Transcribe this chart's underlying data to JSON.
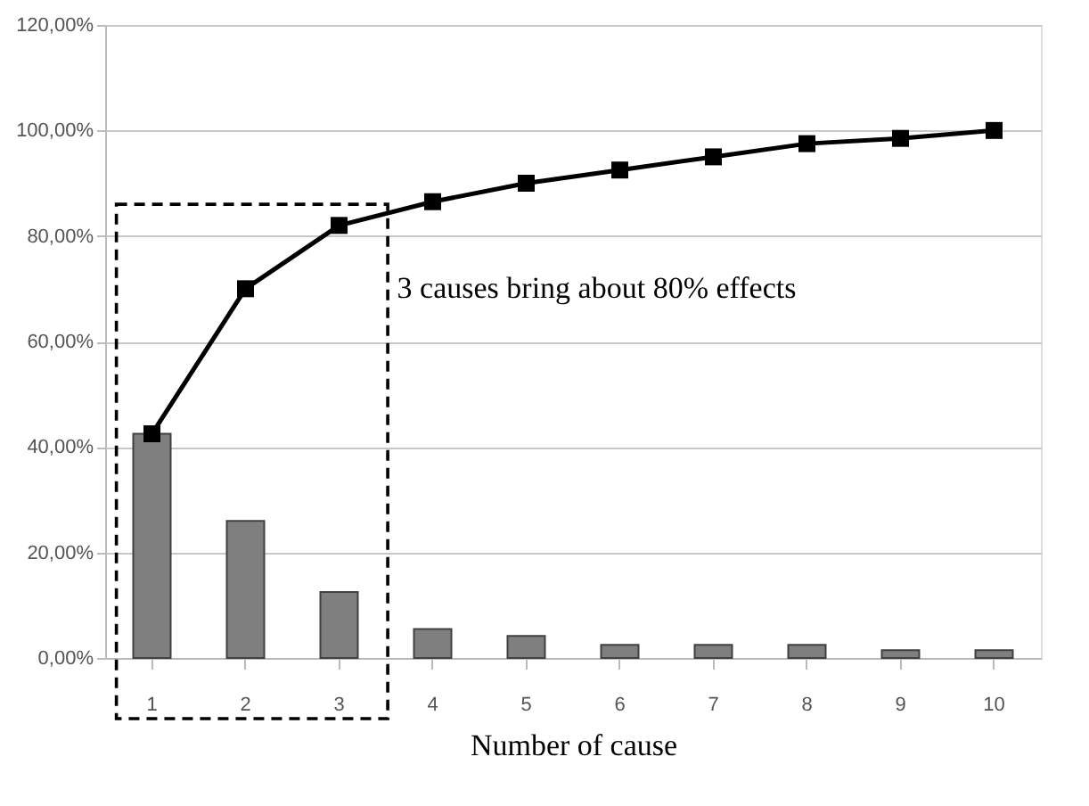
{
  "chart_data": {
    "type": "bar",
    "xlabel": "Number of cause",
    "categories": [
      "1",
      "2",
      "3",
      "4",
      "5",
      "6",
      "7",
      "8",
      "9",
      "10"
    ],
    "series": [
      {
        "color": "#7f7f7f",
        "values": [
          42.5,
          26,
          12.5,
          5.5,
          4.2,
          2.5,
          2.5,
          2.5,
          1.5,
          1.5
        ]
      },
      {
        "type": "line",
        "color": "#000000",
        "marker": "square",
        "line_style": "solid",
        "values": [
          42.5,
          70,
          82,
          86.5,
          90,
          92.5,
          95,
          97.5,
          98.5,
          100
        ]
      }
    ],
    "ylim": [
      0,
      120
    ],
    "yticks": [
      {
        "value": 0,
        "label": "0,00%"
      },
      {
        "value": 20,
        "label": "20,00%"
      },
      {
        "value": 40,
        "label": "40,00%"
      },
      {
        "value": 60,
        "label": "60,00%"
      },
      {
        "value": 80,
        "label": "80,00%"
      },
      {
        "value": 100,
        "label": "100,00%"
      },
      {
        "value": 120,
        "label": "120,00%"
      }
    ],
    "grid": "y",
    "annotations": [
      "3 causes bring about 80% effects"
    ]
  }
}
